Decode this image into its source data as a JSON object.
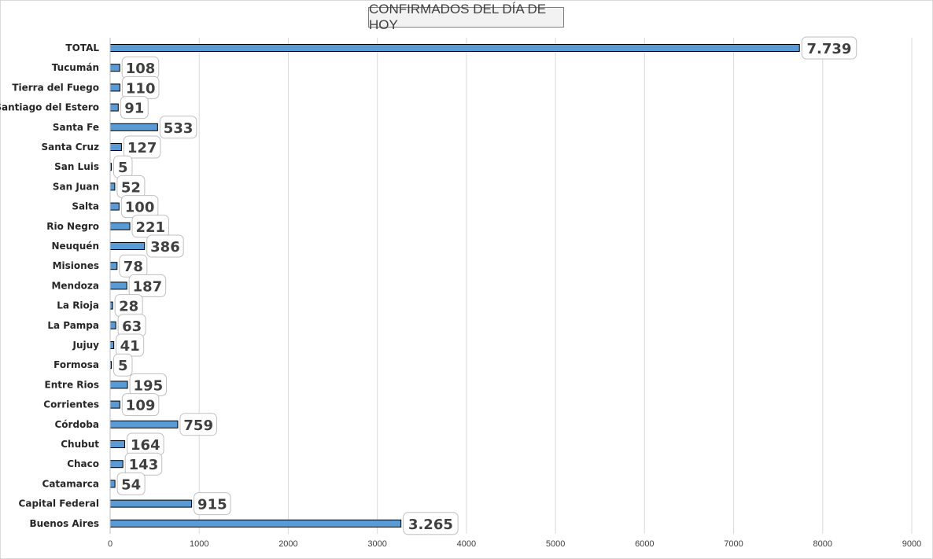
{
  "chart_data": {
    "type": "bar",
    "orientation": "horizontal",
    "title": "CONFIRMADOS DEL DÍA DE HOY",
    "categories": [
      "TOTAL",
      "Tucumán",
      "Tierra del Fuego",
      "Santiago del Estero",
      "Santa Fe",
      "Santa Cruz",
      "San Luis",
      "San Juan",
      "Salta",
      "Rio Negro",
      "Neuquén",
      "Misiones",
      "Mendoza",
      "La Rioja",
      "La Pampa",
      "Jujuy",
      "Formosa",
      "Entre Rios",
      "Corrientes",
      "Córdoba",
      "Chubut",
      "Chaco",
      "Catamarca",
      "Capital Federal",
      "Buenos Aires"
    ],
    "values": [
      7739,
      108,
      110,
      91,
      533,
      127,
      5,
      52,
      100,
      221,
      386,
      78,
      187,
      28,
      63,
      41,
      5,
      195,
      109,
      759,
      164,
      143,
      54,
      915,
      3265
    ],
    "data_labels": [
      "7.739",
      "108",
      "110",
      "91",
      "533",
      "127",
      "5",
      "52",
      "100",
      "221",
      "386",
      "78",
      "187",
      "28",
      "63",
      "41",
      "5",
      "195",
      "109",
      "759",
      "164",
      "143",
      "54",
      "915",
      "3.265"
    ],
    "xlim": [
      0,
      9000
    ],
    "x_ticks": [
      0,
      1000,
      2000,
      3000,
      4000,
      5000,
      6000,
      7000,
      8000,
      9000
    ],
    "grid": "vertical",
    "bar_color": "#5b9bd5",
    "bar_outline": "#000000",
    "xlabel": "",
    "ylabel": ""
  }
}
